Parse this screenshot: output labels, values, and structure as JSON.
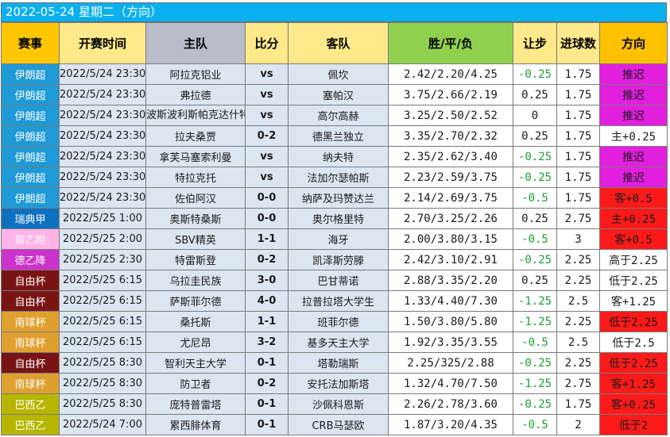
{
  "title": "2022-05-24 星期二（方向）",
  "headers": {
    "league": "赛事",
    "time": "开赛时间",
    "home": "主队",
    "score": "比分",
    "away": "客队",
    "odds": "胜/平/负",
    "handicap": "让步",
    "goals": "进球数",
    "direction": "方向"
  },
  "colors": {
    "title_bar": "#0bb0ef",
    "header_gold": "#fdc600",
    "header_green": "#8fd14f",
    "dir_purple": "#e21fde",
    "dir_red": "#ff1a1a",
    "league_iran": "#1f9ad6",
    "league_sweden": "#0e70c0",
    "league_dutch": "#ffb3e6",
    "league_german": "#cc33cc",
    "league_libertadores": "#7a1414",
    "league_sudamericana": "#e0a030",
    "league_brazil": "#b6b600",
    "negative_handicap_text": "#1e9e35"
  },
  "rows": [
    {
      "league": "伊朗超",
      "league_color": "#1f9ad6",
      "time": "2022/5/24 23:30",
      "home": "阿拉克铝业",
      "score": "vs",
      "away": "佩坎",
      "odds": "2.42/2.20/4.25",
      "handicap": "-0.25",
      "goals": "1.75",
      "direction": "推迟",
      "dir_color": "#e21fde"
    },
    {
      "league": "伊朗超",
      "league_color": "#1f9ad6",
      "time": "2022/5/24 23:30",
      "home": "弗拉德",
      "score": "vs",
      "away": "塞帕汉",
      "odds": "3.75/2.66/2.19",
      "handicap": "0.25",
      "goals": "1.75",
      "direction": "推迟",
      "dir_color": "#e21fde"
    },
    {
      "league": "伊朗超",
      "league_color": "#1f9ad6",
      "time": "2022/5/24 23:30",
      "home": "波斯波利斯帕克达什特",
      "score": "vs",
      "away": "高尔高赫",
      "odds": "3.25/2.50/2.52",
      "handicap": "0",
      "goals": "1.75",
      "direction": "推迟",
      "dir_color": "#e21fde"
    },
    {
      "league": "伊朗超",
      "league_color": "#1f9ad6",
      "time": "2022/5/24 23:30",
      "home": "拉夫桑贾",
      "score": "0-2",
      "away": "德黑兰独立",
      "odds": "3.35/2.70/2.32",
      "handicap": "0.25",
      "goals": "1.75",
      "direction": "主+0.25",
      "dir_color": "#ffffff"
    },
    {
      "league": "伊朗超",
      "league_color": "#1f9ad6",
      "time": "2022/5/24 23:30",
      "home": "拿芙马塞索利曼",
      "score": "vs",
      "away": "纳夫特",
      "odds": "2.35/2.62/3.40",
      "handicap": "-0.25",
      "goals": "1.75",
      "direction": "推迟",
      "dir_color": "#e21fde"
    },
    {
      "league": "伊朗超",
      "league_color": "#1f9ad6",
      "time": "2022/5/24 23:30",
      "home": "特拉克托",
      "score": "vs",
      "away": "法加尔瑟帕斯",
      "odds": "2.23/2.59/3.75",
      "handicap": "-0.25",
      "goals": "1.75",
      "direction": "推迟",
      "dir_color": "#e21fde"
    },
    {
      "league": "伊朗超",
      "league_color": "#1f9ad6",
      "time": "2022/5/24 23:30",
      "home": "佐伯阿汉",
      "score": "0-0",
      "away": "纳萨及玛赞达兰",
      "odds": "2.14/2.69/3.75",
      "handicap": "-0.5",
      "goals": "1.75",
      "direction": "客+0.5",
      "dir_color": "#ff1a1a"
    },
    {
      "league": "瑞典甲",
      "league_color": "#0e70c0",
      "time": "2022/5/25 1:00",
      "home": "奥斯特桑斯",
      "score": "0-0",
      "away": "奥尔格里特",
      "odds": "2.70/3.25/2.26",
      "handicap": "0.25",
      "goals": "2.75",
      "direction": "主+0.25",
      "dir_color": "#ff1a1a"
    },
    {
      "league": "荷乙附",
      "league_color": "#ffb3e6",
      "time": "2022/5/25 2:00",
      "home": "SBV精英",
      "score": "1-1",
      "away": "海牙",
      "odds": "2.00/3.80/3.15",
      "handicap": "-0.5",
      "goals": "3",
      "direction": "客+0.5",
      "dir_color": "#ff1a1a"
    },
    {
      "league": "德乙降",
      "league_color": "#cc33cc",
      "time": "2022/5/25 2:30",
      "home": "特雷斯登",
      "score": "0-2",
      "away": "凯泽斯劳滕",
      "odds": "2.42/3.10/2.91",
      "handicap": "-0.25",
      "goals": "2.25",
      "direction": "高于2.25",
      "dir_color": "#ffffff"
    },
    {
      "league": "自由杯",
      "league_color": "#7a1414",
      "time": "2022/5/25 6:15",
      "home": "乌拉圭民族",
      "score": "3-0",
      "away": "巴甘蒂诺",
      "odds": "2.88/3.35/2.20",
      "handicap": "0.25",
      "goals": "2.25",
      "direction": "低于2.25",
      "dir_color": "#ffffff"
    },
    {
      "league": "自由杯",
      "league_color": "#7a1414",
      "time": "2022/5/25 6:15",
      "home": "萨斯菲尔德",
      "score": "4-0",
      "away": "拉普拉塔大学生",
      "odds": "1.33/4.40/7.30",
      "handicap": "-1.25",
      "goals": "2.5",
      "direction": "客+1.25",
      "dir_color": "#ffffff"
    },
    {
      "league": "南球杯",
      "league_color": "#e0a030",
      "time": "2022/5/25 6:15",
      "home": "桑托斯",
      "score": "1-1",
      "away": "班菲尔德",
      "odds": "1.50/3.80/5.80",
      "handicap": "-1.25",
      "goals": "2.25",
      "direction": "低于2.25",
      "dir_color": "#ff1a1a"
    },
    {
      "league": "南球杯",
      "league_color": "#e0a030",
      "time": "2022/5/25 6:15",
      "home": "尤尼昂",
      "score": "3-2",
      "away": "基多天主大学",
      "odds": "1.92/3.35/3.55",
      "handicap": "-0.5",
      "goals": "2.5",
      "direction": "低于2.5",
      "dir_color": "#ffffff"
    },
    {
      "league": "自由杯",
      "league_color": "#7a1414",
      "time": "2022/5/25 8:30",
      "home": "智利天主大学",
      "score": "0-1",
      "away": "塔勒瑞斯",
      "odds": "2.25/325/2.88",
      "handicap": "-0.25",
      "goals": "2.25",
      "direction": "低于2.25",
      "dir_color": "#ff1a1a"
    },
    {
      "league": "南球杯",
      "league_color": "#e0a030",
      "time": "2022/5/25 8:30",
      "home": "防卫者",
      "score": "0-2",
      "away": "安托法加斯塔",
      "odds": "1.32/4.70/7.50",
      "handicap": "-1.25",
      "goals": "2.75",
      "direction": "客+1.25",
      "dir_color": "#ff1a1a"
    },
    {
      "league": "巴西乙",
      "league_color": "#b6b600",
      "time": "2022/5/25 8:30",
      "home": "庞特普雷塔",
      "score": "0-1",
      "away": "沙佩科恩斯",
      "odds": "2.26/2.78/3.60",
      "handicap": "-0.25",
      "goals": "1.75",
      "direction": "客+0.25",
      "dir_color": "#ff1a1a"
    },
    {
      "league": "巴西乙",
      "league_color": "#b6b600",
      "time": "2022/5/24 7:00",
      "home": "累西腓体育",
      "score": "0-1",
      "away": "CRB马瑟欧",
      "odds": "1.87/3.20/4.35",
      "handicap": "-0.5",
      "goals": "2",
      "direction": "低于2",
      "dir_color": "#ff1a1a"
    }
  ]
}
